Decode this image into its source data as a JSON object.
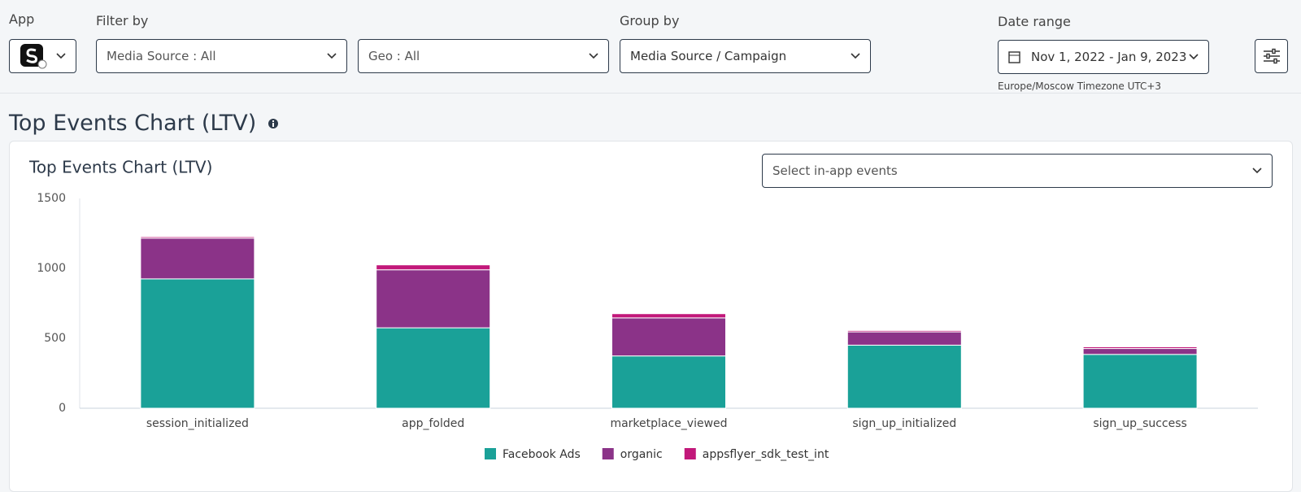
{
  "header": {
    "app_label": "App",
    "filter_label": "Filter by",
    "media_source": "Media Source : All",
    "geo": "Geo : All",
    "group_label": "Group by",
    "group_value": "Media Source / Campaign",
    "date_label": "Date range",
    "date_value": "Nov 1, 2022 - Jan 9, 2023",
    "timezone": "Europe/Moscow Timezone UTC+3"
  },
  "section_title": "Top Events Chart (LTV)",
  "event_select_placeholder": "Select in-app events",
  "chart_data": {
    "type": "bar",
    "stacked": true,
    "title": "Top Events Chart (LTV)",
    "categories": [
      "session_initialized",
      "app_folded",
      "marketplace_viewed",
      "sign_up_initialized",
      "sign_up_success"
    ],
    "series": [
      {
        "name": "Facebook Ads",
        "color": "#1aa198",
        "values": [
          925,
          575,
          374,
          451,
          385
        ]
      },
      {
        "name": "organic",
        "color": "#8b3388",
        "values": [
          291,
          415,
          272,
          95,
          42
        ]
      },
      {
        "name": "appsflyer_sdk_test_int",
        "color": "#c2187a",
        "values": [
          10,
          35,
          30,
          10,
          12
        ]
      }
    ],
    "ylim": [
      0,
      1500
    ],
    "yticks": [
      0,
      500,
      1000,
      1500
    ]
  }
}
